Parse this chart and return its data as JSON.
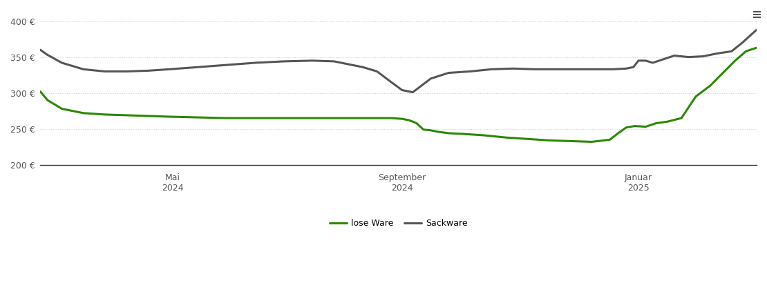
{
  "background_color": "#ffffff",
  "grid_color": "#cccccc",
  "ylim": [
    200,
    415
  ],
  "yticks": [
    200,
    250,
    300,
    350,
    400
  ],
  "lose_ware_color": "#2a8800",
  "sackware_color": "#555555",
  "lose_ware_label": "lose Ware",
  "sackware_label": "Sackware",
  "line_width": 2.2,
  "xtick_labels": [
    "Mai\n2024",
    "September\n2024",
    "Januar\n2025"
  ],
  "xtick_positions": [
    0.185,
    0.505,
    0.835
  ],
  "lose_ware_x": [
    0.0,
    0.01,
    0.03,
    0.06,
    0.09,
    0.12,
    0.15,
    0.18,
    0.22,
    0.26,
    0.3,
    0.34,
    0.38,
    0.42,
    0.46,
    0.49,
    0.505,
    0.515,
    0.525,
    0.535,
    0.545,
    0.555,
    0.57,
    0.59,
    0.62,
    0.65,
    0.68,
    0.71,
    0.74,
    0.77,
    0.795,
    0.808,
    0.818,
    0.83,
    0.845,
    0.86,
    0.875,
    0.895,
    0.915,
    0.935,
    0.955,
    0.97,
    0.985,
    1.0
  ],
  "lose_ware_y": [
    302,
    290,
    278,
    272,
    270,
    269,
    268,
    267,
    266,
    265,
    265,
    265,
    265,
    265,
    265,
    265,
    264,
    262,
    258,
    249,
    248,
    246,
    244,
    243,
    241,
    238,
    236,
    234,
    233,
    232,
    235,
    245,
    252,
    254,
    253,
    258,
    260,
    265,
    295,
    310,
    330,
    345,
    358,
    363
  ],
  "sackware_x": [
    0.0,
    0.01,
    0.03,
    0.06,
    0.09,
    0.12,
    0.15,
    0.18,
    0.22,
    0.26,
    0.3,
    0.34,
    0.38,
    0.41,
    0.43,
    0.45,
    0.47,
    0.49,
    0.505,
    0.52,
    0.545,
    0.57,
    0.6,
    0.63,
    0.66,
    0.69,
    0.72,
    0.75,
    0.78,
    0.8,
    0.818,
    0.828,
    0.835,
    0.845,
    0.855,
    0.87,
    0.885,
    0.905,
    0.925,
    0.945,
    0.965,
    0.98,
    1.0
  ],
  "sackware_y": [
    360,
    353,
    342,
    333,
    330,
    330,
    331,
    333,
    336,
    339,
    342,
    344,
    345,
    344,
    340,
    336,
    330,
    315,
    304,
    301,
    320,
    328,
    330,
    333,
    334,
    333,
    333,
    333,
    333,
    333,
    334,
    336,
    345,
    345,
    342,
    347,
    352,
    350,
    351,
    355,
    358,
    370,
    388
  ]
}
